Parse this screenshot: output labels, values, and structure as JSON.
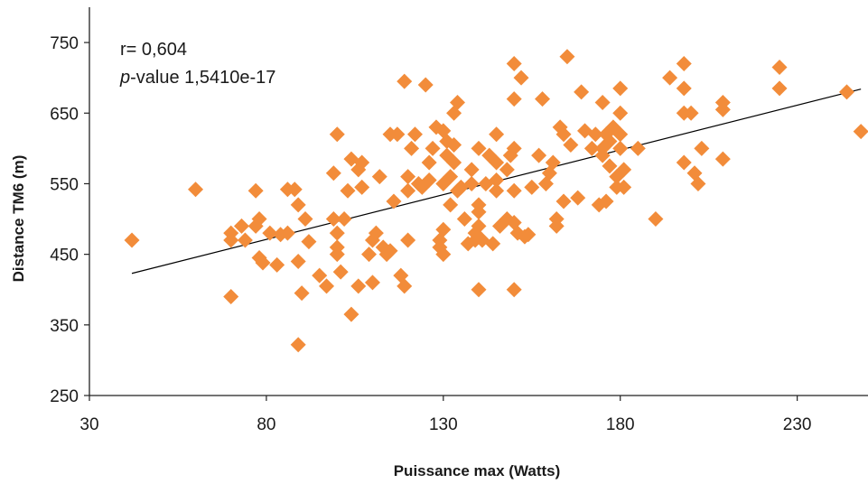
{
  "chart_data": {
    "type": "scatter",
    "title": "",
    "xlabel": "Puissance max (Watts)",
    "ylabel": "Distance TM6 (m)",
    "xlim": [
      30,
      250
    ],
    "ylim": [
      250,
      800
    ],
    "x_ticks": [
      "30",
      "80",
      "130",
      "180",
      "230"
    ],
    "y_ticks": [
      "250",
      "350",
      "450",
      "550",
      "650",
      "750"
    ],
    "grid": false,
    "legend": "none",
    "marker_color": "#f28c3a",
    "trendline_color": "#000000",
    "annotation": {
      "r_text": "r= 0,604",
      "p_italic": "p",
      "p_text": "-value 1,5410e-17"
    },
    "trendline": {
      "x": [
        42,
        248
      ],
      "y": [
        423,
        684
      ]
    },
    "series": [
      {
        "points": [
          [
            42,
            470
          ],
          [
            60,
            542
          ],
          [
            70,
            480
          ],
          [
            70,
            470
          ],
          [
            70,
            390
          ],
          [
            73,
            490
          ],
          [
            74,
            470
          ],
          [
            77,
            540
          ],
          [
            77,
            490
          ],
          [
            78,
            500
          ],
          [
            78,
            445
          ],
          [
            79,
            438
          ],
          [
            81,
            480
          ],
          [
            83,
            435
          ],
          [
            84,
            478
          ],
          [
            86,
            480
          ],
          [
            86,
            542
          ],
          [
            88,
            542
          ],
          [
            89,
            440
          ],
          [
            89,
            322
          ],
          [
            89,
            520
          ],
          [
            90,
            395
          ],
          [
            91,
            500
          ],
          [
            92,
            468
          ],
          [
            95,
            420
          ],
          [
            97,
            405
          ],
          [
            99,
            500
          ],
          [
            99,
            565
          ],
          [
            100,
            620
          ],
          [
            100,
            480
          ],
          [
            100,
            460
          ],
          [
            100,
            450
          ],
          [
            101,
            425
          ],
          [
            102,
            500
          ],
          [
            103,
            540
          ],
          [
            104,
            365
          ],
          [
            104,
            585
          ],
          [
            106,
            405
          ],
          [
            106,
            570
          ],
          [
            107,
            545
          ],
          [
            107,
            580
          ],
          [
            109,
            450
          ],
          [
            110,
            410
          ],
          [
            110,
            470
          ],
          [
            111,
            480
          ],
          [
            112,
            560
          ],
          [
            113,
            460
          ],
          [
            114,
            450
          ],
          [
            115,
            620
          ],
          [
            115,
            455
          ],
          [
            116,
            525
          ],
          [
            117,
            620
          ],
          [
            118,
            420
          ],
          [
            119,
            695
          ],
          [
            119,
            405
          ],
          [
            120,
            470
          ],
          [
            120,
            540
          ],
          [
            120,
            560
          ],
          [
            121,
            600
          ],
          [
            122,
            620
          ],
          [
            123,
            550
          ],
          [
            124,
            545
          ],
          [
            125,
            690
          ],
          [
            126,
            555
          ],
          [
            126,
            580
          ],
          [
            127,
            600
          ],
          [
            128,
            630
          ],
          [
            129,
            470
          ],
          [
            129,
            460
          ],
          [
            130,
            450
          ],
          [
            130,
            485
          ],
          [
            130,
            550
          ],
          [
            130,
            625
          ],
          [
            131,
            610
          ],
          [
            131,
            590
          ],
          [
            132,
            520
          ],
          [
            132,
            560
          ],
          [
            133,
            580
          ],
          [
            133,
            605
          ],
          [
            133,
            650
          ],
          [
            134,
            665
          ],
          [
            134,
            540
          ],
          [
            135,
            545
          ],
          [
            136,
            500
          ],
          [
            137,
            465
          ],
          [
            138,
            550
          ],
          [
            138,
            570
          ],
          [
            139,
            480
          ],
          [
            139,
            470
          ],
          [
            140,
            520
          ],
          [
            140,
            510
          ],
          [
            140,
            490
          ],
          [
            140,
            600
          ],
          [
            140,
            400
          ],
          [
            141,
            470
          ],
          [
            142,
            550
          ],
          [
            143,
            590
          ],
          [
            144,
            465
          ],
          [
            145,
            580
          ],
          [
            145,
            555
          ],
          [
            145,
            540
          ],
          [
            145,
            620
          ],
          [
            146,
            490
          ],
          [
            148,
            500
          ],
          [
            148,
            570
          ],
          [
            149,
            590
          ],
          [
            150,
            720
          ],
          [
            150,
            670
          ],
          [
            150,
            600
          ],
          [
            150,
            540
          ],
          [
            150,
            495
          ],
          [
            150,
            400
          ],
          [
            151,
            480
          ],
          [
            152,
            700
          ],
          [
            153,
            475
          ],
          [
            154,
            478
          ],
          [
            155,
            545
          ],
          [
            157,
            590
          ],
          [
            158,
            670
          ],
          [
            159,
            550
          ],
          [
            160,
            565
          ],
          [
            161,
            580
          ],
          [
            162,
            500
          ],
          [
            162,
            490
          ],
          [
            163,
            630
          ],
          [
            164,
            525
          ],
          [
            164,
            620
          ],
          [
            165,
            730
          ],
          [
            166,
            605
          ],
          [
            168,
            530
          ],
          [
            169,
            680
          ],
          [
            170,
            625
          ],
          [
            172,
            600
          ],
          [
            173,
            620
          ],
          [
            174,
            520
          ],
          [
            175,
            665
          ],
          [
            175,
            600
          ],
          [
            175,
            590
          ],
          [
            176,
            620
          ],
          [
            176,
            525
          ],
          [
            177,
            610
          ],
          [
            177,
            575
          ],
          [
            178,
            630
          ],
          [
            179,
            560
          ],
          [
            179,
            545
          ],
          [
            180,
            685
          ],
          [
            180,
            650
          ],
          [
            180,
            620
          ],
          [
            180,
            600
          ],
          [
            181,
            570
          ],
          [
            181,
            545
          ],
          [
            185,
            600
          ],
          [
            190,
            500
          ],
          [
            194,
            700
          ],
          [
            198,
            720
          ],
          [
            198,
            685
          ],
          [
            198,
            650
          ],
          [
            198,
            580
          ],
          [
            200,
            650
          ],
          [
            201,
            565
          ],
          [
            202,
            550
          ],
          [
            203,
            600
          ],
          [
            209,
            665
          ],
          [
            209,
            655
          ],
          [
            209,
            585
          ],
          [
            225,
            715
          ],
          [
            225,
            685
          ],
          [
            244,
            680
          ],
          [
            248,
            624
          ]
        ]
      }
    ]
  }
}
